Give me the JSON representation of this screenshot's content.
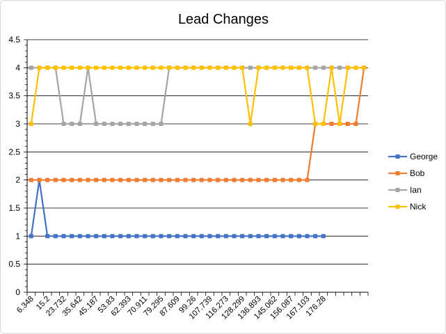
{
  "chart_data": {
    "type": "line",
    "title": "Lead Changes",
    "xlabel": "",
    "ylabel": "",
    "ylim": [
      0,
      4.5
    ],
    "ytick_step": 0.5,
    "y_ticks": [
      "0",
      "0.5",
      "1",
      "1.5",
      "2",
      "2.5",
      "3",
      "3.5",
      "4",
      "4.5"
    ],
    "x_tick_labels": [
      "6.348",
      "15.2",
      "23.732",
      "35.642",
      "45.187",
      "53.83",
      "62.393",
      "70.911",
      "79.295",
      "87.609",
      "99.26",
      "107.739",
      "116.273",
      "128.299",
      "136.893",
      "145.062",
      "156.087",
      "167.103",
      "176.28"
    ],
    "num_points": 42,
    "grid": true,
    "legend_position": "right",
    "series": [
      {
        "name": "George",
        "color": "#4472c4",
        "values": [
          1,
          2,
          1,
          1,
          1,
          1,
          1,
          1,
          1,
          1,
          1,
          1,
          1,
          1,
          1,
          1,
          1,
          1,
          1,
          1,
          1,
          1,
          1,
          1,
          1,
          1,
          1,
          1,
          1,
          1,
          1,
          1,
          1,
          1,
          1,
          1,
          1,
          null,
          null,
          null,
          null,
          null
        ]
      },
      {
        "name": "Bob",
        "color": "#ed7d31",
        "values": [
          2,
          2,
          2,
          2,
          2,
          2,
          2,
          2,
          2,
          2,
          2,
          2,
          2,
          2,
          2,
          2,
          2,
          2,
          2,
          2,
          2,
          2,
          2,
          2,
          2,
          2,
          2,
          2,
          2,
          2,
          2,
          2,
          2,
          2,
          2,
          3,
          3,
          3,
          3,
          3,
          3,
          4
        ]
      },
      {
        "name": "Ian",
        "color": "#a5a5a5",
        "values": [
          4,
          4,
          4,
          4,
          3,
          3,
          3,
          4,
          3,
          3,
          3,
          3,
          3,
          3,
          3,
          3,
          3,
          4,
          4,
          4,
          4,
          4,
          4,
          4,
          4,
          4,
          4,
          4,
          4,
          4,
          4,
          4,
          4,
          4,
          4,
          4,
          4,
          4,
          4,
          4,
          4,
          4
        ]
      },
      {
        "name": "Nick",
        "color": "#ffc000",
        "values": [
          3,
          4,
          4,
          4,
          4,
          4,
          4,
          4,
          4,
          4,
          4,
          4,
          4,
          4,
          4,
          4,
          4,
          4,
          4,
          4,
          4,
          4,
          4,
          4,
          4,
          4,
          4,
          3,
          4,
          4,
          4,
          4,
          4,
          4,
          4,
          3,
          3,
          4,
          3,
          4,
          4,
          4
        ]
      }
    ]
  }
}
